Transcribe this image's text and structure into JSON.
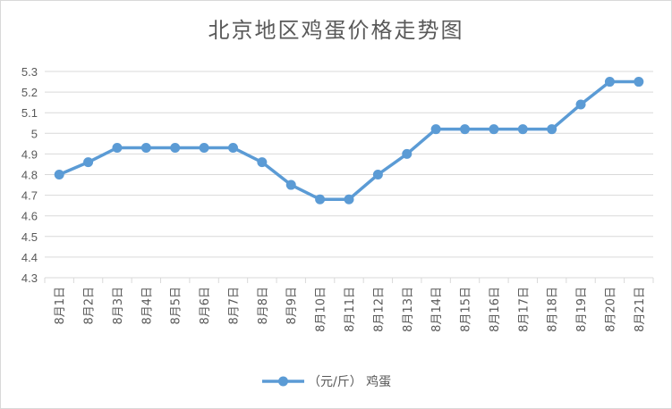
{
  "chart_data": {
    "type": "line",
    "title": "北京地区鸡蛋价格走势图",
    "categories": [
      "8月1日",
      "8月2日",
      "8月3日",
      "8月4日",
      "8月5日",
      "8月6日",
      "8月7日",
      "8月8日",
      "8月9日",
      "8月10日",
      "8月11日",
      "8月12日",
      "8月13日",
      "8月14日",
      "8月15日",
      "8月16日",
      "8月17日",
      "8月18日",
      "8月19日",
      "8月20日",
      "8月21日"
    ],
    "series": [
      {
        "name": "（元/斤） 鸡蛋",
        "values": [
          4.8,
          4.86,
          4.93,
          4.93,
          4.93,
          4.93,
          4.93,
          4.86,
          4.75,
          4.68,
          4.68,
          4.8,
          4.9,
          5.02,
          5.02,
          5.02,
          5.02,
          5.02,
          5.14,
          5.25,
          5.25
        ]
      }
    ],
    "yticks": [
      "4.3",
      "4.4",
      "4.5",
      "4.6",
      "4.7",
      "4.8",
      "4.9",
      "5",
      "5.1",
      "5.2",
      "5.3"
    ],
    "ylim": [
      4.3,
      5.3
    ],
    "grid": true,
    "legend": "bottom",
    "colors": {
      "line": "#5b9bd5",
      "grid": "#d9d9d9",
      "text": "#595959"
    }
  }
}
